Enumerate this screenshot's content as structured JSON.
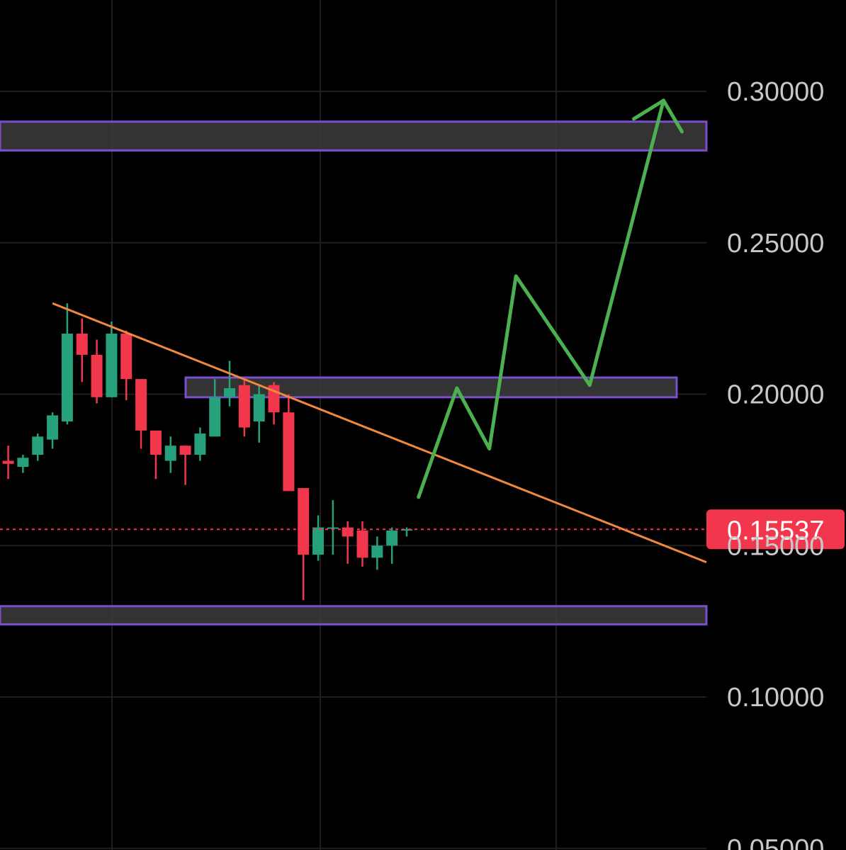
{
  "chart_data": {
    "type": "candlestick",
    "title": "",
    "xlabel": "",
    "ylabel": "",
    "ylim": [
      0.05,
      0.317
    ],
    "y_ticks": [
      "0.30000",
      "0.25000",
      "0.20000",
      "0.15000",
      "0.10000",
      "0.05000"
    ],
    "y_tick_values": [
      0.3,
      0.25,
      0.2,
      0.15,
      0.1,
      0.05
    ],
    "grid": true,
    "colors": {
      "background": "#000000",
      "grid": "#1f1f1f",
      "up": "#26a17b",
      "down": "#f2364c",
      "trendline": "#f0883e",
      "zone_fill": "#3c3c3c",
      "zone_border": "#7c4dcc",
      "projection": "#4caf50",
      "last_price": "#f2364c",
      "tick_text": "#c8c8c8"
    },
    "last_price": {
      "value": 0.15537,
      "label": "0.15537"
    },
    "candles": [
      {
        "open": 0.178,
        "high": 0.183,
        "low": 0.172,
        "close": 0.177
      },
      {
        "open": 0.176,
        "high": 0.18,
        "low": 0.174,
        "close": 0.179
      },
      {
        "open": 0.18,
        "high": 0.187,
        "low": 0.178,
        "close": 0.186
      },
      {
        "open": 0.185,
        "high": 0.194,
        "low": 0.182,
        "close": 0.193
      },
      {
        "open": 0.191,
        "high": 0.23,
        "low": 0.19,
        "close": 0.22
      },
      {
        "open": 0.22,
        "high": 0.225,
        "low": 0.204,
        "close": 0.213
      },
      {
        "open": 0.213,
        "high": 0.218,
        "low": 0.197,
        "close": 0.199
      },
      {
        "open": 0.199,
        "high": 0.224,
        "low": 0.199,
        "close": 0.22
      },
      {
        "open": 0.22,
        "high": 0.221,
        "low": 0.198,
        "close": 0.205
      },
      {
        "open": 0.205,
        "high": 0.205,
        "low": 0.182,
        "close": 0.188
      },
      {
        "open": 0.188,
        "high": 0.187,
        "low": 0.172,
        "close": 0.18
      },
      {
        "open": 0.178,
        "high": 0.186,
        "low": 0.174,
        "close": 0.183
      },
      {
        "open": 0.183,
        "high": 0.183,
        "low": 0.17,
        "close": 0.18
      },
      {
        "open": 0.18,
        "high": 0.189,
        "low": 0.178,
        "close": 0.187
      },
      {
        "open": 0.186,
        "high": 0.205,
        "low": 0.186,
        "close": 0.199
      },
      {
        "open": 0.199,
        "high": 0.211,
        "low": 0.196,
        "close": 0.202
      },
      {
        "open": 0.203,
        "high": 0.205,
        "low": 0.186,
        "close": 0.189
      },
      {
        "open": 0.191,
        "high": 0.203,
        "low": 0.184,
        "close": 0.2
      },
      {
        "open": 0.203,
        "high": 0.204,
        "low": 0.19,
        "close": 0.194
      },
      {
        "open": 0.194,
        "high": 0.2,
        "low": 0.17,
        "close": 0.168
      },
      {
        "open": 0.169,
        "high": 0.169,
        "low": 0.132,
        "close": 0.147
      },
      {
        "open": 0.147,
        "high": 0.16,
        "low": 0.145,
        "close": 0.156
      },
      {
        "open": 0.156,
        "high": 0.165,
        "low": 0.147,
        "close": 0.156
      },
      {
        "open": 0.156,
        "high": 0.158,
        "low": 0.144,
        "close": 0.153
      },
      {
        "open": 0.155,
        "high": 0.158,
        "low": 0.143,
        "close": 0.146
      },
      {
        "open": 0.146,
        "high": 0.153,
        "low": 0.142,
        "close": 0.15
      },
      {
        "open": 0.15,
        "high": 0.156,
        "low": 0.144,
        "close": 0.155
      },
      {
        "open": 0.155,
        "high": 0.156,
        "low": 0.153,
        "close": 0.1554
      }
    ],
    "zones": [
      {
        "name": "upper-resistance-zone",
        "top": 0.29,
        "bottom": 0.2805
      },
      {
        "name": "mid-resistance-zone",
        "top": 0.2055,
        "bottom": 0.199
      },
      {
        "name": "support-zone",
        "top": 0.13,
        "bottom": 0.124
      }
    ],
    "trendline": {
      "from": {
        "candle": 3,
        "price": 0.23
      },
      "to_price_at_axis": 0.1445
    },
    "projection_path": [
      {
        "candle": 27.8,
        "price": 0.166
      },
      {
        "candle": 30.4,
        "price": 0.202
      },
      {
        "candle": 32.6,
        "price": 0.182
      },
      {
        "candle": 34.4,
        "price": 0.239
      },
      {
        "candle": 39.4,
        "price": 0.203
      },
      {
        "candle": 44.4,
        "price": 0.297
      }
    ]
  }
}
